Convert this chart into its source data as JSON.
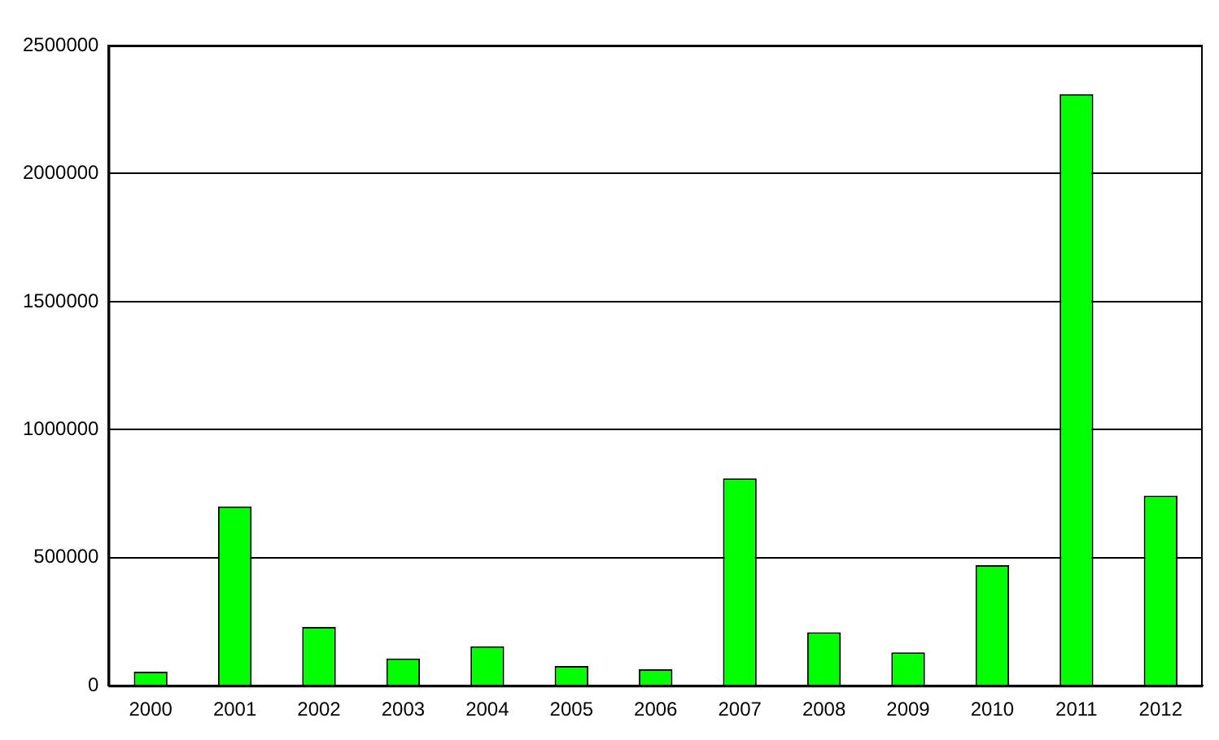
{
  "chart_data": {
    "type": "bar",
    "categories": [
      "2000",
      "2001",
      "2002",
      "2003",
      "2004",
      "2005",
      "2006",
      "2007",
      "2008",
      "2009",
      "2010",
      "2011",
      "2012"
    ],
    "values": [
      55000,
      700000,
      229000,
      106000,
      154000,
      77000,
      64000,
      810000,
      209000,
      130000,
      471000,
      2310000,
      742000
    ],
    "color": "#00ff00",
    "ylim": [
      0,
      2500000
    ],
    "yticks": [
      0,
      500000,
      1000000,
      1500000,
      2000000,
      2500000
    ],
    "grid": "y",
    "legend": false
  }
}
